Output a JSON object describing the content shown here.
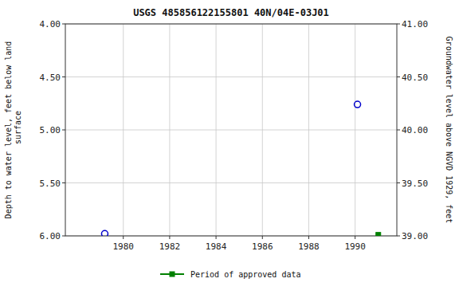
{
  "chart_data": {
    "type": "scatter",
    "title": "USGS 485856122155801 40N/04E-03J01",
    "ylabel": "Depth to water level, feet below land\n surface",
    "y2label": "Groundwater level above NGVD 1929, feet",
    "xlim": [
      1977.5,
      1991.8
    ],
    "xticks": [
      1980,
      1982,
      1984,
      1986,
      1988,
      1990
    ],
    "ylim": [
      6.0,
      4.0
    ],
    "yticks": [
      {
        "value": 4.0,
        "label": "4.00"
      },
      {
        "value": 4.5,
        "label": "4.50"
      },
      {
        "value": 5.0,
        "label": "5.00"
      },
      {
        "value": 5.5,
        "label": "5.50"
      },
      {
        "value": 6.0,
        "label": "6.00"
      }
    ],
    "y2lim": [
      39.0,
      41.0
    ],
    "y2ticks": [
      {
        "value": 41.0,
        "label": "41.00"
      },
      {
        "value": 40.5,
        "label": "40.50"
      },
      {
        "value": 40.0,
        "label": "40.00"
      },
      {
        "value": 39.5,
        "label": "39.50"
      },
      {
        "value": 39.0,
        "label": "39.00"
      }
    ],
    "grid": true,
    "legend": "bottom",
    "series": [
      {
        "color": "#0000cc",
        "marker": "circle",
        "x": [
          1979.2,
          1990.1
        ],
        "values": [
          5.98,
          4.76
        ]
      },
      {
        "name": "Period of approved data",
        "color": "#008000",
        "marker": "square",
        "x": [
          1991.0
        ],
        "values": [
          5.99
        ]
      }
    ]
  }
}
